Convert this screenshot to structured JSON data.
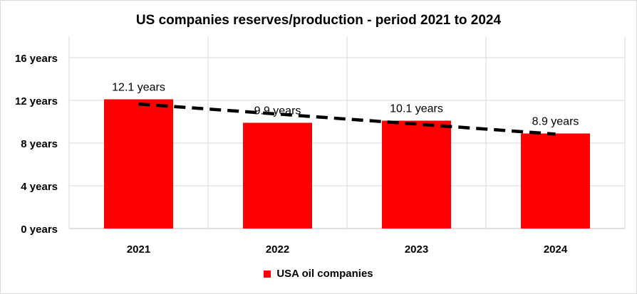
{
  "colors": {
    "bar": "#ff0000",
    "trendline": "#000000",
    "grid": "#d9d9d9"
  },
  "chart_data": {
    "type": "bar",
    "title": "US companies reserves/production - period 2021 to 2024",
    "categories": [
      "2021",
      "2022",
      "2023",
      "2024"
    ],
    "series": [
      {
        "name": "USA oil companies",
        "values": [
          12.1,
          9.9,
          10.1,
          8.9
        ],
        "data_labels": [
          "12.1 years",
          "9.9 years",
          "10.1 years",
          "8.9 years"
        ]
      }
    ],
    "ylim": [
      0,
      18
    ],
    "yticks": [
      0,
      4,
      8,
      12,
      16
    ],
    "ytick_labels": [
      "0 years",
      "4 years",
      "8 years",
      "12 years",
      "16 years"
    ],
    "xlabel": "",
    "ylabel": "",
    "grid": true,
    "legend": "bottom",
    "trendline": {
      "type": "linear",
      "style": "dashed"
    }
  }
}
